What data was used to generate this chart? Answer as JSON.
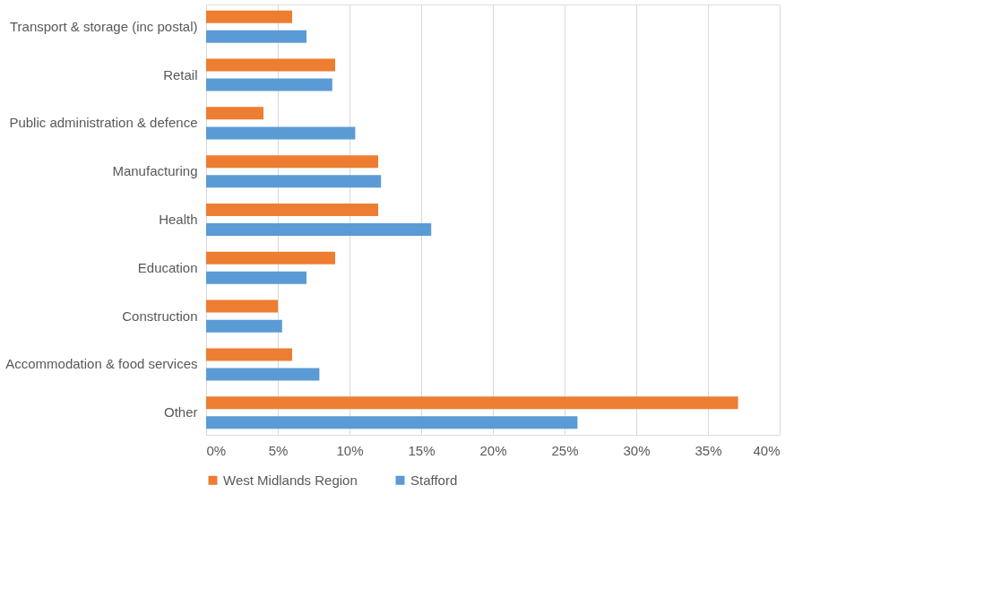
{
  "chart_data": {
    "type": "bar",
    "orientation": "horizontal",
    "categories": [
      "Transport & storage (inc postal)",
      "Retail",
      "Public administration & defence",
      "Manufacturing",
      "Health",
      "Education",
      "Construction",
      "Accommodation & food services",
      "Other"
    ],
    "series": [
      {
        "name": "West Midlands Region",
        "color": "#ed7d31",
        "values": [
          6.0,
          9.0,
          4.0,
          12.0,
          12.0,
          9.0,
          5.0,
          6.0,
          37.1
        ]
      },
      {
        "name": "Stafford",
        "color": "#5b9bd5",
        "values": [
          7.0,
          8.8,
          10.4,
          12.2,
          15.7,
          7.0,
          5.3,
          7.9,
          25.9
        ]
      }
    ],
    "xlim": [
      0,
      40
    ],
    "xticks": [
      {
        "value": 0,
        "label": "0%"
      },
      {
        "value": 5,
        "label": "5%"
      },
      {
        "value": 10,
        "label": "10%"
      },
      {
        "value": 15,
        "label": "15%"
      },
      {
        "value": 20,
        "label": "20%"
      },
      {
        "value": 25,
        "label": "25%"
      },
      {
        "value": 30,
        "label": "30%"
      },
      {
        "value": 35,
        "label": "35%"
      },
      {
        "value": 40,
        "label": "40%"
      }
    ],
    "grid": "x",
    "legend": "bottom"
  }
}
